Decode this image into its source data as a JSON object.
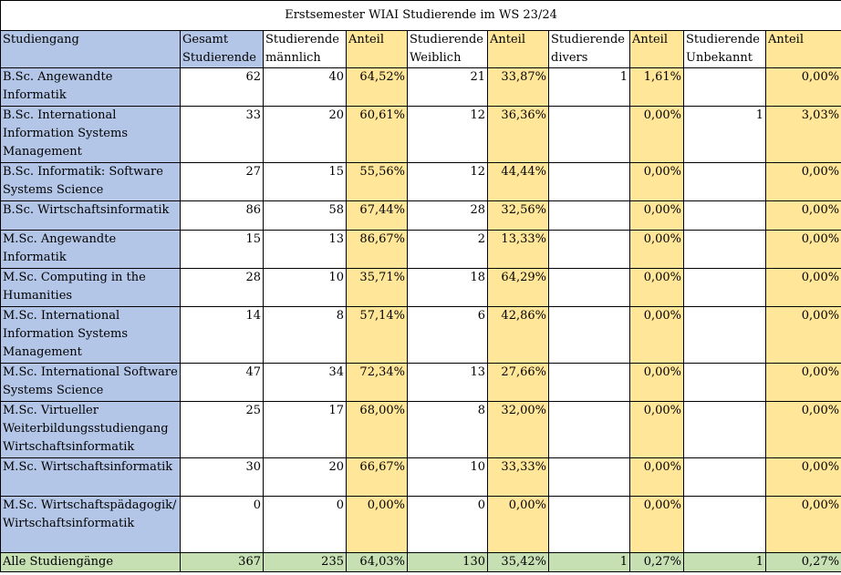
{
  "title": "Erstsemester WIAI Studierende im WS 23/24",
  "headers": [
    "Studiengang",
    "Gesamt Studierende",
    "Studierende männlich",
    "Anteil",
    "Studierende Weiblich",
    "Anteil",
    "Studierende divers",
    "Anteil",
    "Studierende Unbekannt",
    "Anteil"
  ],
  "rows": [
    [
      "B.Sc. Angewandte Informatik",
      "62",
      "40",
      "64,52%",
      "21",
      "33,87%",
      "1",
      "1,61%",
      "",
      "0,00%"
    ],
    [
      "B.Sc. International Information Systems Management",
      "33",
      "20",
      "60,61%",
      "12",
      "36,36%",
      "",
      "0,00%",
      "1",
      "3,03%"
    ],
    [
      "B.Sc. Informatik: Software Systems Science",
      "27",
      "15",
      "55,56%",
      "12",
      "44,44%",
      "",
      "0,00%",
      "",
      "0,00%"
    ],
    [
      "B.Sc. Wirtschaftsinformatik",
      "86",
      "58",
      "67,44%",
      "28",
      "32,56%",
      "",
      "0,00%",
      "",
      "0,00%"
    ],
    [
      "M.Sc. Angewandte Informatik",
      "15",
      "13",
      "86,67%",
      "2",
      "13,33%",
      "",
      "0,00%",
      "",
      "0,00%"
    ],
    [
      "M.Sc. Computing in the Humanities",
      "28",
      "10",
      "35,71%",
      "18",
      "64,29%",
      "",
      "0,00%",
      "",
      "0,00%"
    ],
    [
      "M.Sc. International Information Systems Management",
      "14",
      "8",
      "57,14%",
      "6",
      "42,86%",
      "",
      "0,00%",
      "",
      "0,00%"
    ],
    [
      "M.Sc. International Software Systems Science",
      "47",
      "34",
      "72,34%",
      "13",
      "27,66%",
      "",
      "0,00%",
      "",
      "0,00%"
    ],
    [
      "M.Sc. Virtueller Weiterbildungsstudiengang Wirtschaftsinformatik",
      "25",
      "17",
      "68,00%",
      "8",
      "32,00%",
      "",
      "0,00%",
      "",
      "0,00%"
    ],
    [
      "M.Sc. Wirtschaftsinformatik",
      "30",
      "20",
      "66,67%",
      "10",
      "33,33%",
      "",
      "0,00%",
      "",
      "0,00%"
    ],
    [
      "M.Sc. Wirtschaftspädagogik/ Wirtschaftsinformatik",
      "0",
      "0",
      "0,00%",
      "0",
      "0,00%",
      "",
      "0,00%",
      "",
      "0,00%"
    ]
  ],
  "total": [
    "Alle Studiengänge",
    "367",
    "235",
    "64,03%",
    "130",
    "35,42%",
    "1",
    "0,27%",
    "1",
    "0,27%"
  ],
  "colors": {
    "blue": "#b4c6e7",
    "yellow": "#ffe699",
    "green": "#c6e0b4"
  }
}
